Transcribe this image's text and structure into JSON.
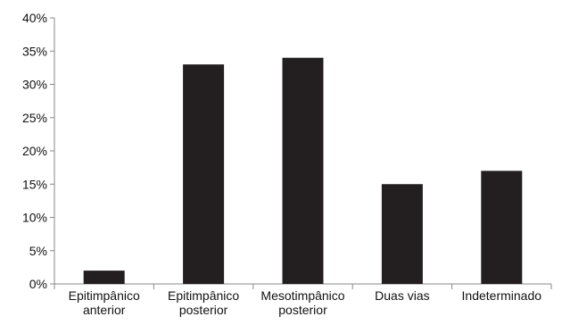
{
  "chart_data": {
    "type": "bar",
    "title": "",
    "xlabel": "",
    "ylabel": "",
    "categories": [
      [
        "Epitimpânico",
        "anterior"
      ],
      [
        "Epitimpânico",
        "posterior"
      ],
      [
        "Mesotimpânico",
        "posterior"
      ],
      [
        "Duas vias"
      ],
      [
        "Indeterminado"
      ]
    ],
    "values": [
      2,
      33,
      34,
      15,
      17
    ],
    "ylim": [
      0,
      40
    ],
    "yticks": [
      0,
      5,
      10,
      15,
      20,
      25,
      30,
      35,
      40
    ],
    "ytick_labels": [
      "0%",
      "5%",
      "10%",
      "15%",
      "20%",
      "25%",
      "30%",
      "35%",
      "40%"
    ],
    "grid": false,
    "legend": "none",
    "bar_color": "#231f20"
  }
}
